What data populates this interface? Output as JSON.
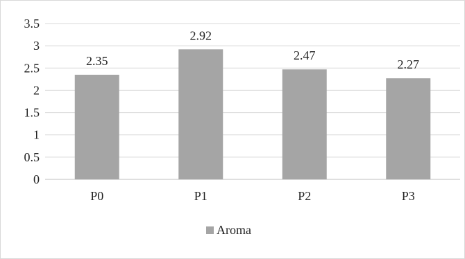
{
  "chart_data": {
    "type": "bar",
    "categories": [
      "P0",
      "P1",
      "P2",
      "P3"
    ],
    "series": [
      {
        "name": "Aroma",
        "values": [
          2.35,
          2.92,
          2.47,
          2.27
        ]
      }
    ],
    "data_labels": [
      "2.35",
      "2.92",
      "2.47",
      "2.27"
    ],
    "y_ticks": [
      "0",
      "0.5",
      "1",
      "1.5",
      "2",
      "2.5",
      "3",
      "3.5"
    ],
    "ylim": [
      0,
      3.5
    ],
    "grid": true,
    "legend_position": "bottom",
    "bar_color": "#a5a5a5",
    "title": "",
    "xlabel": "",
    "ylabel": ""
  }
}
